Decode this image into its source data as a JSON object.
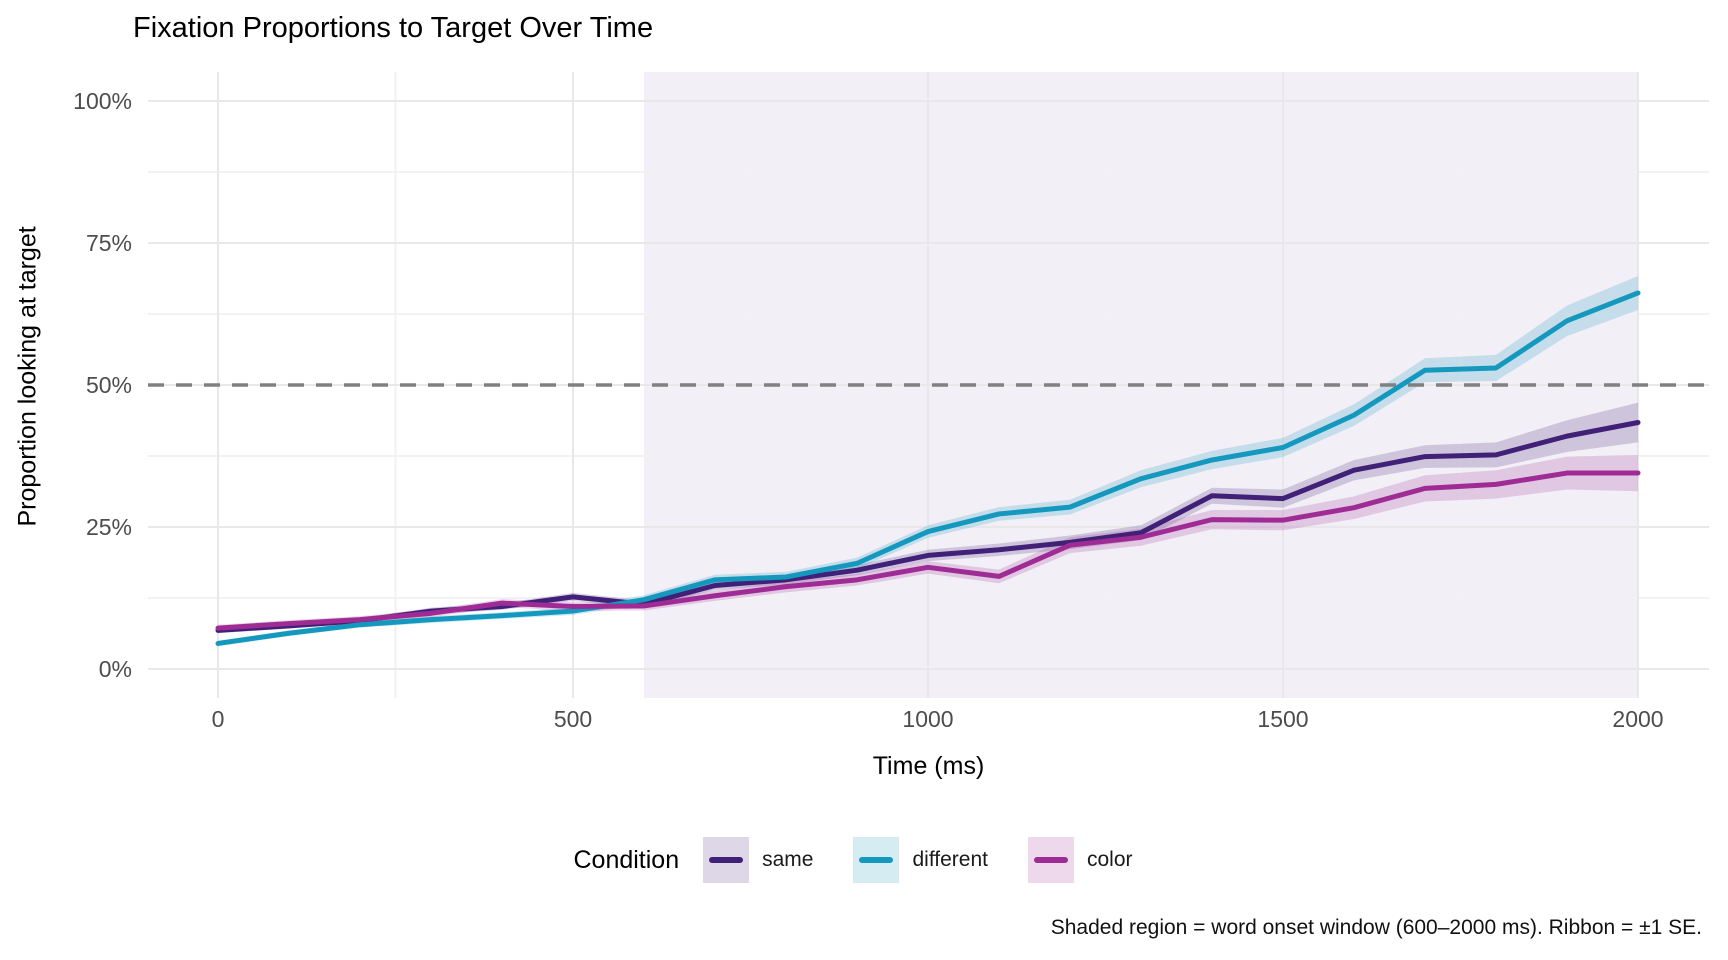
{
  "title": "Fixation Proportions to Target Over Time",
  "caption": "Shaded region = word onset window (600–2000 ms). Ribbon = ±1 SE.",
  "chart_data": {
    "type": "line",
    "title": "Fixation Proportions to Target Over Time",
    "xlabel": "Time (ms)",
    "ylabel": "Proportion looking at target",
    "legend_title": "Condition",
    "legend_position": "bottom",
    "grid": true,
    "xlim": [
      -100,
      2100
    ],
    "ylim": [
      -5,
      105
    ],
    "x_ticks": [
      {
        "value": 0,
        "label": "0"
      },
      {
        "value": 500,
        "label": "500"
      },
      {
        "value": 1000,
        "label": "1000"
      },
      {
        "value": 1500,
        "label": "1500"
      },
      {
        "value": 2000,
        "label": "2000"
      }
    ],
    "y_ticks": [
      {
        "value": 0,
        "label": "0%"
      },
      {
        "value": 25,
        "label": "25%"
      },
      {
        "value": 50,
        "label": "50%"
      },
      {
        "value": 75,
        "label": "75%"
      },
      {
        "value": 100,
        "label": "100%"
      }
    ],
    "x_minor_ticks": [
      250,
      750,
      1250,
      1750
    ],
    "y_minor_ticks": [
      12.5,
      37.5,
      62.5,
      87.5
    ],
    "x": [
      0,
      100,
      200,
      300,
      400,
      500,
      600,
      700,
      800,
      900,
      1000,
      1100,
      1200,
      1300,
      1400,
      1500,
      1600,
      1700,
      1800,
      1900,
      2000
    ],
    "series": [
      {
        "name": "same",
        "color": "#412078",
        "values": [
          6.8,
          7.6,
          8.5,
          10.2,
          11.0,
          12.7,
          11.4,
          14.7,
          15.7,
          17.4,
          20.0,
          21.0,
          22.3,
          24.0,
          30.5,
          30.0,
          35.0,
          37.4,
          37.7,
          41.0,
          43.4
        ],
        "se": [
          0.5,
          0.5,
          0.5,
          0.6,
          0.6,
          0.7,
          0.7,
          0.8,
          0.8,
          0.9,
          1.0,
          1.1,
          1.2,
          1.3,
          1.4,
          1.6,
          1.8,
          2.0,
          2.2,
          2.8,
          3.5
        ]
      },
      {
        "name": "different",
        "color": "#1498BE",
        "values": [
          4.5,
          6.3,
          7.8,
          8.7,
          9.4,
          10.2,
          12.2,
          15.7,
          16.2,
          18.6,
          24.2,
          27.3,
          28.5,
          33.5,
          36.8,
          39.0,
          44.7,
          52.6,
          53.0,
          61.3,
          66.2
        ],
        "se": [
          0.5,
          0.5,
          0.5,
          0.6,
          0.6,
          0.7,
          0.8,
          0.9,
          0.9,
          1.0,
          1.1,
          1.2,
          1.3,
          1.5,
          1.6,
          1.7,
          1.9,
          2.1,
          2.3,
          2.7,
          3.0
        ]
      },
      {
        "name": "color",
        "color": "#9E2C94",
        "values": [
          7.2,
          8.0,
          8.7,
          9.8,
          11.6,
          11.0,
          11.1,
          12.9,
          14.5,
          15.7,
          17.9,
          16.3,
          21.8,
          23.2,
          26.3,
          26.2,
          28.4,
          31.8,
          32.5,
          34.5,
          34.5
        ],
        "se": [
          0.6,
          0.6,
          0.6,
          0.7,
          0.7,
          0.8,
          0.8,
          0.9,
          1.0,
          1.0,
          1.1,
          1.2,
          1.4,
          1.5,
          1.7,
          1.8,
          2.0,
          2.3,
          2.5,
          2.9,
          3.2
        ]
      }
    ],
    "reference_line": {
      "y": 50,
      "style": "dashed",
      "color": "#808080"
    },
    "shaded_region": {
      "x0": 600,
      "x1": 2000,
      "fill": "#F2EFF6"
    },
    "colors": {
      "grid_major": "#E8E8EA",
      "grid_minor": "#F2F2F4",
      "tick_text": "#4D4D4D",
      "ribbon_opacity": 0.2
    }
  }
}
